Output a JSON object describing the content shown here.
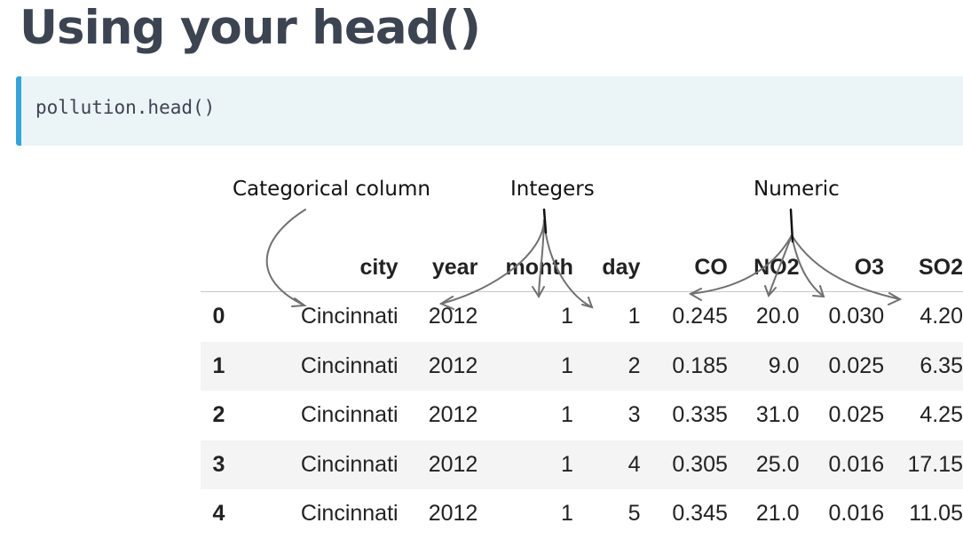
{
  "title": "Using your head()",
  "code": "pollution.head()",
  "annotations": {
    "categorical": "Categorical column",
    "integers": "Integers",
    "numeric": "Numeric"
  },
  "table": {
    "columns": [
      "",
      "city",
      "year",
      "month",
      "day",
      "CO",
      "NO2",
      "O3",
      "SO2"
    ],
    "rows": [
      [
        "0",
        "Cincinnati",
        "2012",
        "1",
        "1",
        "0.245",
        "20.0",
        "0.030",
        "4.20"
      ],
      [
        "1",
        "Cincinnati",
        "2012",
        "1",
        "2",
        "0.185",
        "9.0",
        "0.025",
        "6.35"
      ],
      [
        "2",
        "Cincinnati",
        "2012",
        "1",
        "3",
        "0.335",
        "31.0",
        "0.025",
        "4.25"
      ],
      [
        "3",
        "Cincinnati",
        "2012",
        "1",
        "4",
        "0.305",
        "25.0",
        "0.016",
        "17.15"
      ],
      [
        "4",
        "Cincinnati",
        "2012",
        "1",
        "5",
        "0.345",
        "21.0",
        "0.016",
        "11.05"
      ]
    ]
  },
  "colors": {
    "title": "#3d4451",
    "code_bg": "#ebf4f7",
    "code_accent": "#33a4d8",
    "arrow": "#707070"
  }
}
